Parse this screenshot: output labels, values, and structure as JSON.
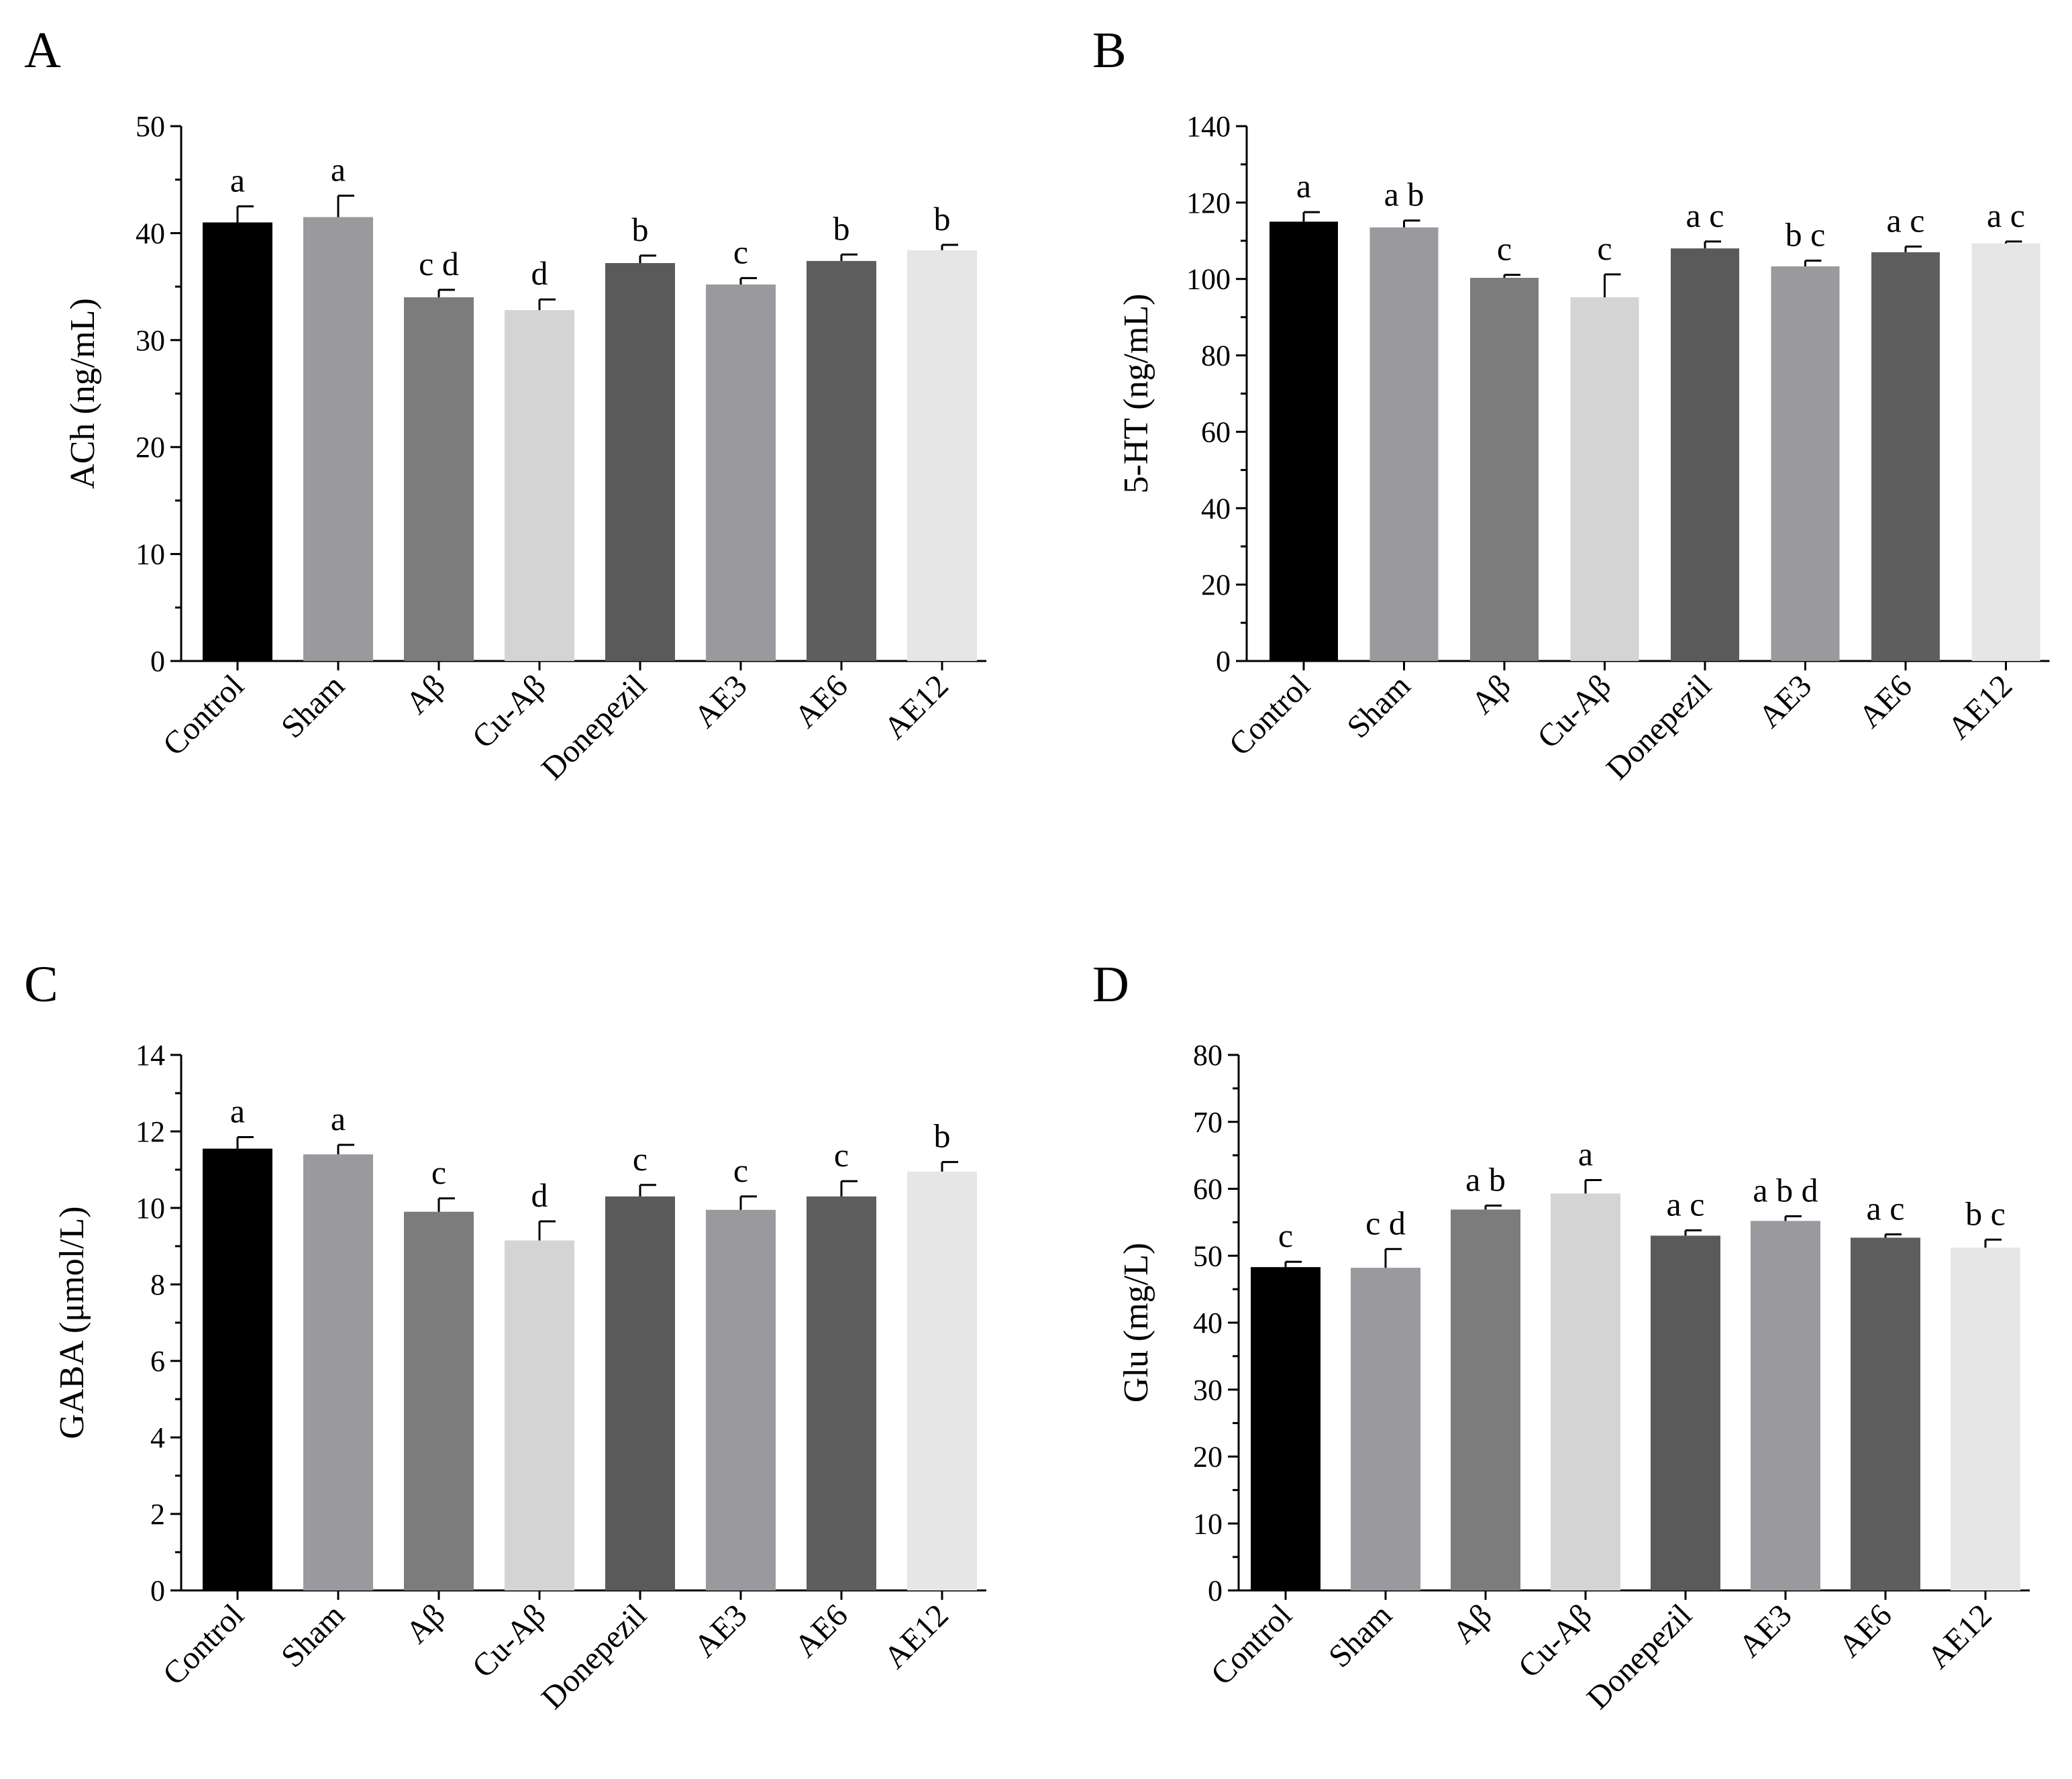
{
  "chart_data": [
    {
      "panel": "A",
      "type": "bar",
      "title": "",
      "xlabel": "",
      "ylabel": "ACh (ng/mL)",
      "ylim": [
        0,
        50
      ],
      "yticks": [
        0,
        10,
        20,
        30,
        40,
        50
      ],
      "categories": [
        "Control",
        "Sham",
        "Aβ",
        "Cu-Aβ",
        "Donepezil",
        "AE3",
        "AE6",
        "AE12"
      ],
      "values": [
        41.0,
        41.5,
        34.0,
        32.8,
        37.2,
        35.2,
        37.4,
        38.4
      ],
      "errors": [
        1.5,
        2.0,
        0.7,
        1.0,
        0.7,
        0.6,
        0.6,
        0.5
      ],
      "significance": [
        "a",
        "a",
        "c d",
        "d",
        "b",
        "c",
        "b",
        "b"
      ],
      "bar_colors": [
        "#000000",
        "#9a9a9e",
        "#7c7c7c",
        "#d4d4d4",
        "#5a5a5a",
        "#9a9a9e",
        "#5e5e5e",
        "#e6e6e6"
      ]
    },
    {
      "panel": "B",
      "type": "bar",
      "title": "",
      "xlabel": "",
      "ylabel": "5-HT (ng/mL)",
      "ylim": [
        0,
        140
      ],
      "yticks": [
        0,
        20,
        40,
        60,
        80,
        100,
        120,
        140
      ],
      "categories": [
        "Control",
        "Sham",
        "Aβ",
        "Cu-Aβ",
        "Donepezil",
        "AE3",
        "AE6",
        "AE12"
      ],
      "values": [
        115.0,
        113.5,
        100.3,
        95.2,
        108.0,
        103.3,
        107.0,
        109.3
      ],
      "errors": [
        2.5,
        1.8,
        0.8,
        6.0,
        1.8,
        1.5,
        1.5,
        0.5
      ],
      "significance": [
        "a",
        "a b",
        "c",
        "c",
        "a c",
        "b c",
        "a c",
        "a c"
      ],
      "bar_colors": [
        "#000000",
        "#9a9a9e",
        "#7c7c7c",
        "#d4d4d4",
        "#5a5a5a",
        "#9a9a9e",
        "#5e5e5e",
        "#e6e6e6"
      ]
    },
    {
      "panel": "C",
      "type": "bar",
      "title": "",
      "xlabel": "",
      "ylabel": "GABA (μmol/L)",
      "ylim": [
        0,
        14
      ],
      "yticks": [
        0,
        2,
        4,
        6,
        8,
        10,
        12,
        14
      ],
      "categories": [
        "Control",
        "Sham",
        "Aβ",
        "Cu-Aβ",
        "Donepezil",
        "AE3",
        "AE6",
        "AE12"
      ],
      "values": [
        11.55,
        11.4,
        9.9,
        9.15,
        10.3,
        9.95,
        10.3,
        10.95
      ],
      "errors": [
        0.3,
        0.25,
        0.35,
        0.5,
        0.3,
        0.35,
        0.4,
        0.25
      ],
      "significance": [
        "a",
        "a",
        "c",
        "d",
        "c",
        "c",
        "c",
        "b"
      ],
      "bar_colors": [
        "#000000",
        "#9a9a9e",
        "#7c7c7c",
        "#d4d4d4",
        "#5a5a5a",
        "#9a9a9e",
        "#5e5e5e",
        "#e6e6e6"
      ]
    },
    {
      "panel": "D",
      "type": "bar",
      "title": "",
      "xlabel": "",
      "ylabel": "Glu (mg/L)",
      "ylim": [
        0,
        80
      ],
      "yticks": [
        0,
        10,
        20,
        30,
        40,
        50,
        60,
        70,
        80
      ],
      "categories": [
        "Control",
        "Sham",
        "Aβ",
        "Cu-Aβ",
        "Donepezil",
        "AE3",
        "AE6",
        "AE12"
      ],
      "values": [
        48.3,
        48.2,
        56.9,
        59.3,
        53.0,
        55.2,
        52.7,
        51.2
      ],
      "errors": [
        0.8,
        2.8,
        0.6,
        2.0,
        0.8,
        0.7,
        0.5,
        1.2
      ],
      "significance": [
        "c",
        "c d",
        "a b",
        "a",
        "a c",
        "a b d",
        "a c",
        "b c"
      ],
      "bar_colors": [
        "#000000",
        "#9a9a9e",
        "#7c7c7c",
        "#d4d4d4",
        "#5a5a5a",
        "#9a9a9e",
        "#5e5e5e",
        "#e6e6e6"
      ]
    }
  ]
}
